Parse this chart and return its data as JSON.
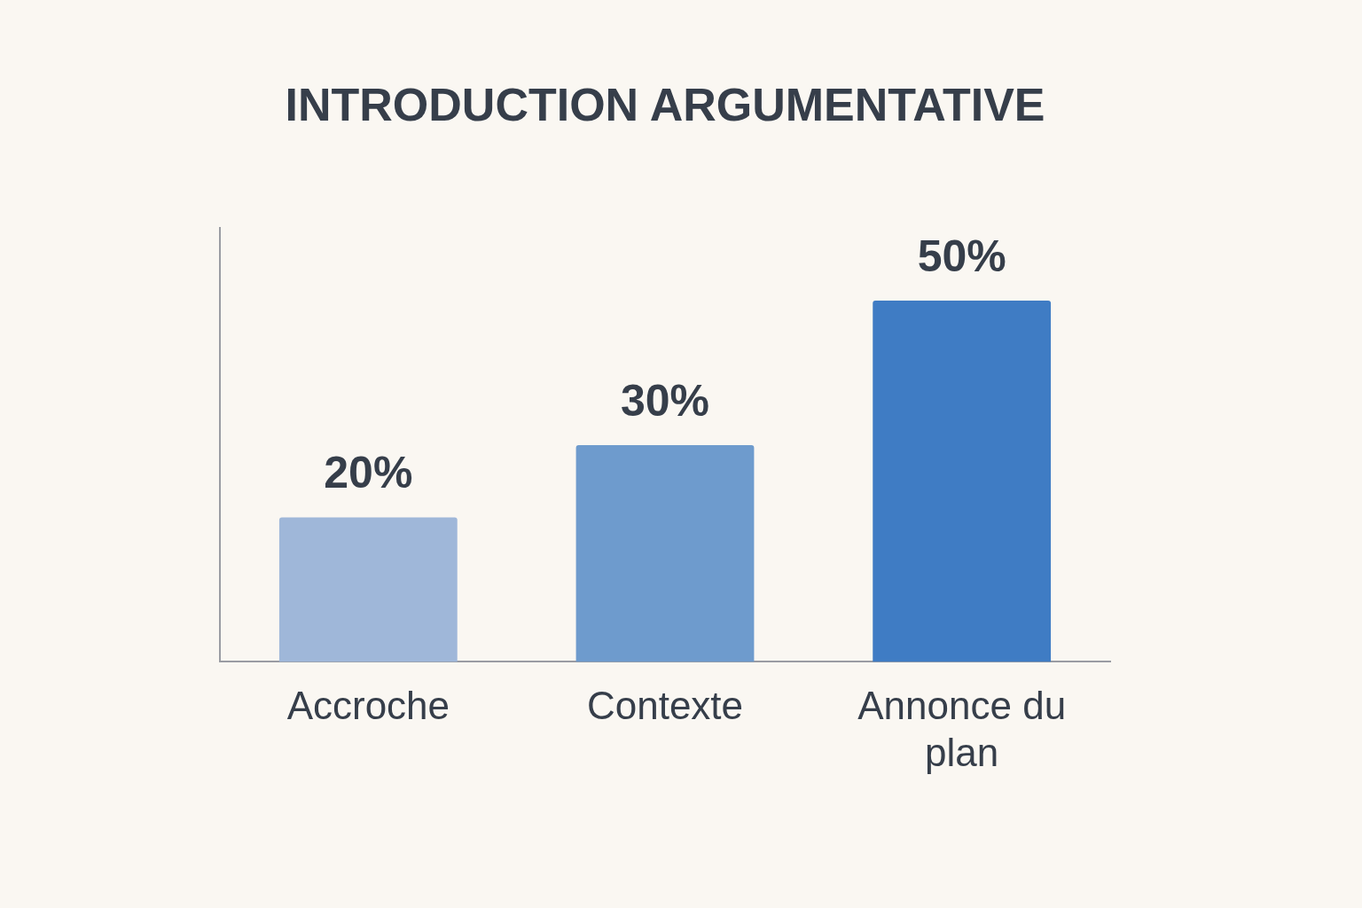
{
  "chart_data": {
    "type": "bar",
    "title": "INTRODUCTION ARGUMENTATIVE",
    "categories": [
      "Accroche",
      "Contexte",
      "Annonce du plan"
    ],
    "values": [
      20,
      30,
      50
    ],
    "colors": [
      "#9fb7d9",
      "#6e9bcd",
      "#3f7cc4"
    ],
    "value_labels": [
      "20%",
      "30%",
      "50%"
    ],
    "tick_labels": "x",
    "grid": false,
    "legend": false
  }
}
